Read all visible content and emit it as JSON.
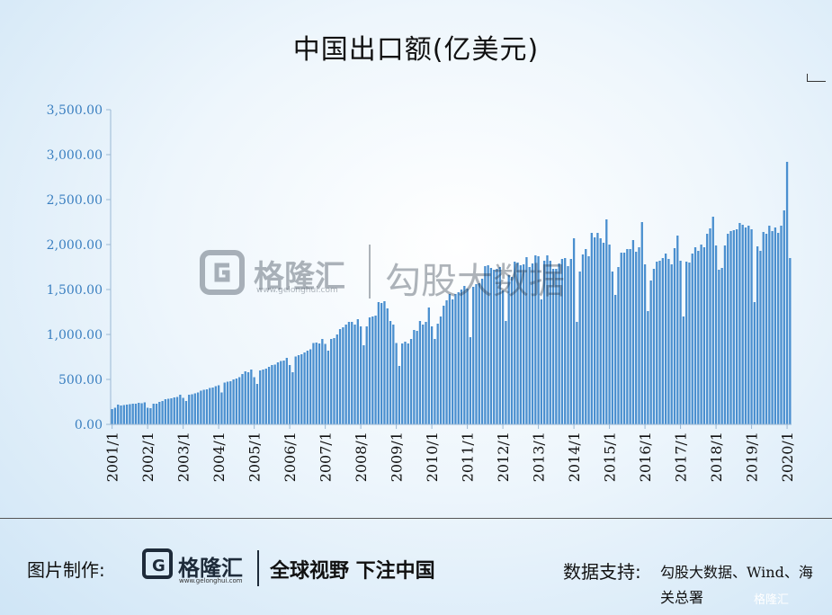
{
  "chart_data": {
    "type": "bar",
    "title": "中国出口额(亿美元)",
    "xlabel": "",
    "ylabel": "",
    "ylim": [
      0,
      3500
    ],
    "yticks": [
      "0.00",
      "500.00",
      "1,000.00",
      "1,500.00",
      "2,000.00",
      "2,500.00",
      "3,000.00",
      "3,500.00"
    ],
    "xticks": [
      "2001/1",
      "2002/1",
      "2003/1",
      "2004/1",
      "2005/1",
      "2006/1",
      "2007/1",
      "2008/1",
      "2009/1",
      "2010/1",
      "2011/1",
      "2012/1",
      "2013/1",
      "2014/1",
      "2015/1",
      "2016/1",
      "2017/1",
      "2018/1",
      "2019/1",
      "2020/1"
    ],
    "bar_color": "#4a8fcf",
    "axis_color": "#9ab8d4",
    "tick_color": "#3a7fc0",
    "series": [
      {
        "values": [
          170,
          185,
          220,
          210,
          215,
          220,
          225,
          230,
          230,
          240,
          235,
          245,
          185,
          180,
          230,
          230,
          250,
          260,
          280,
          285,
          290,
          300,
          305,
          330,
          295,
          260,
          330,
          335,
          345,
          355,
          375,
          385,
          390,
          405,
          410,
          425,
          435,
          355,
          465,
          475,
          480,
          500,
          510,
          525,
          560,
          590,
          580,
          610,
          525,
          450,
          600,
          610,
          620,
          640,
          660,
          665,
          690,
          705,
          710,
          740,
          660,
          580,
          755,
          770,
          780,
          800,
          820,
          835,
          905,
          910,
          900,
          950,
          895,
          820,
          950,
          960,
          1000,
          1060,
          1080,
          1110,
          1140,
          1140,
          1110,
          1170,
          1090,
          880,
          1090,
          1190,
          1200,
          1210,
          1360,
          1350,
          1370,
          1290,
          1150,
          1110,
          905,
          650,
          900,
          920,
          900,
          950,
          1050,
          1040,
          1150,
          1110,
          1140,
          1300,
          1090,
          950,
          1120,
          1200,
          1320,
          1380,
          1450,
          1390,
          1450,
          1470,
          1500,
          1540,
          1510,
          970,
          1530,
          1560,
          1570,
          1620,
          1760,
          1770,
          1740,
          1720,
          1730,
          1750,
          1490,
          1150,
          1660,
          1640,
          1810,
          1800,
          1770,
          1780,
          1860,
          1750,
          1790,
          1880,
          1870,
          1390,
          1820,
          1880,
          1820,
          1730,
          1730,
          1790,
          1840,
          1850,
          1760,
          1840,
          2070,
          1140,
          1700,
          1890,
          1950,
          1870,
          2130,
          2080,
          2130,
          2070,
          2020,
          2280,
          2000,
          1700,
          1440,
          1750,
          1910,
          1910,
          1950,
          1950,
          2050,
          1920,
          1970,
          2250,
          1780,
          1260,
          1600,
          1730,
          1810,
          1820,
          1850,
          1900,
          1840,
          1780,
          1960,
          2100,
          1820,
          1200,
          1810,
          1800,
          1900,
          1970,
          1930,
          2000,
          1970,
          2120,
          2180,
          2310,
          1990,
          1720,
          1740,
          1990,
          2120,
          2150,
          2160,
          2170,
          2240,
          2220,
          2190,
          2210,
          2170,
          1360,
          1980,
          1930,
          2140,
          2120,
          2210,
          2150,
          2190,
          2130,
          2210,
          2380,
          2920,
          1850
        ]
      }
    ]
  },
  "watermark": {
    "brand": "格隆汇",
    "url": "www.gelonghui.com",
    "source": "勾股大数据"
  },
  "footer": {
    "credit_label": "图片制作:",
    "brand": "格隆汇",
    "url": "www.gelonghui.com",
    "slogan": "全球视野 下注中国",
    "source_label": "数据支持:",
    "source_text": "勾股大数据、Wind、海关总署",
    "corner_logo": "格隆汇"
  }
}
